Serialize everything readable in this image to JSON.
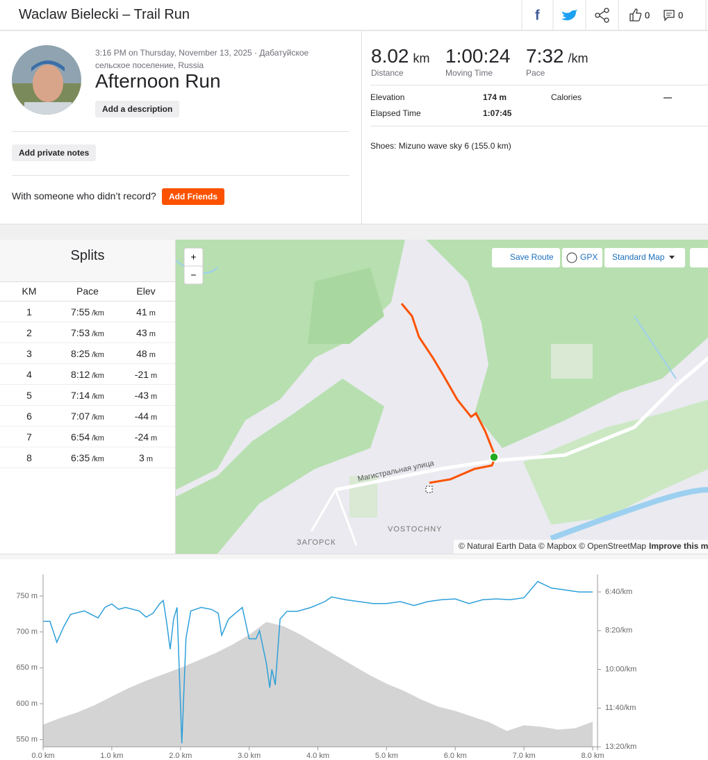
{
  "header": {
    "title": "Waclaw Bielecki – Trail Run",
    "kudos_count": "0",
    "comment_count": "0"
  },
  "activity": {
    "date_location": "3:16 PM on Thursday, November 13, 2025 · Дабатуйское сельское поселение, Russia",
    "name": "Afternoon Run",
    "description_button": "Add a description",
    "private_notes_button": "Add private notes",
    "with_someone": "With someone who didn’t record?",
    "add_friends_button": "Add Friends"
  },
  "stats": {
    "primary": [
      {
        "value": "8.02",
        "unit": "km",
        "label": "Distance"
      },
      {
        "value": "1:00:24",
        "label": "Moving Time"
      },
      {
        "value": "7:32",
        "unit": "/km",
        "label": "Pace"
      }
    ],
    "secondary": [
      {
        "label": "Elevation",
        "value": "174 m"
      },
      {
        "label": "Calories",
        "value": "—"
      },
      {
        "label": "Elapsed Time",
        "value": "1:07:45"
      }
    ],
    "shoes": "Shoes: Mizuno wave sky 6 (155.0 km)"
  },
  "splits": {
    "title": "Splits",
    "columns": [
      "KM",
      "Pace",
      "Elev"
    ],
    "rows": [
      {
        "km": "1",
        "pace": "7:55",
        "pace_unit": "/km",
        "elev": "41",
        "elev_unit": "m"
      },
      {
        "km": "2",
        "pace": "7:53",
        "pace_unit": "/km",
        "elev": "43",
        "elev_unit": "m"
      },
      {
        "km": "3",
        "pace": "8:25",
        "pace_unit": "/km",
        "elev": "48",
        "elev_unit": "m"
      },
      {
        "km": "4",
        "pace": "8:12",
        "pace_unit": "/km",
        "elev": "-21",
        "elev_unit": "m"
      },
      {
        "km": "5",
        "pace": "7:14",
        "pace_unit": "/km",
        "elev": "-43",
        "elev_unit": "m"
      },
      {
        "km": "6",
        "pace": "7:07",
        "pace_unit": "/km",
        "elev": "-44",
        "elev_unit": "m"
      },
      {
        "km": "7",
        "pace": "6:54",
        "pace_unit": "/km",
        "elev": "-24",
        "elev_unit": "m"
      },
      {
        "km": "8",
        "pace": "6:35",
        "pace_unit": "/km",
        "elev": "3",
        "elev_unit": "m"
      }
    ]
  },
  "map": {
    "zoom_in": "+",
    "zoom_out": "−",
    "save_route": "Save Route",
    "gpx": "GPX",
    "map_style": "Standard Map",
    "street": "Магистральная улица",
    "districts": [
      "VOSTOCHNY",
      "ЗАГОРСК"
    ],
    "attribution": "© Natural Earth Data © Mapbox © OpenStreetMap",
    "improve": "Improve this map"
  },
  "chart_data": {
    "type": "line",
    "xlim": [
      0,
      8
    ],
    "xticks": [
      {
        "value": 0,
        "label": "0.0 km"
      },
      {
        "value": 1,
        "label": "1.0 km"
      },
      {
        "value": 2,
        "label": "2.0 km"
      },
      {
        "value": 3,
        "label": "3.0 km"
      },
      {
        "value": 4,
        "label": "4.0 km"
      },
      {
        "value": 5,
        "label": "5.0 km"
      },
      {
        "value": 6,
        "label": "6.0 km"
      },
      {
        "value": 7,
        "label": "7.0 km"
      },
      {
        "value": 8,
        "label": "8.0 km"
      }
    ],
    "ylim": [
      540,
      780
    ],
    "yticks": [
      {
        "value": 550,
        "label": "550 m"
      },
      {
        "value": 600,
        "label": "600 m"
      },
      {
        "value": 650,
        "label": "650 m"
      },
      {
        "value": 700,
        "label": "700 m"
      },
      {
        "value": 750,
        "label": "750 m"
      }
    ],
    "y2lim": [
      800,
      355
    ],
    "y2ticks": [
      {
        "value": 800,
        "label": "13:20/km"
      },
      {
        "value": 700,
        "label": "11:40/km"
      },
      {
        "value": 600,
        "label": "10:00/km"
      },
      {
        "value": 500,
        "label": "8:20/km"
      },
      {
        "value": 400,
        "label": "6:40/km"
      }
    ],
    "series": [
      {
        "kind": "area",
        "color": "#d4d4d4",
        "x": [
          0,
          0.25,
          0.5,
          0.75,
          1,
          1.25,
          1.5,
          1.75,
          2,
          2.25,
          2.5,
          2.75,
          3,
          3.25,
          3.5,
          3.75,
          4,
          4.25,
          4.5,
          4.75,
          5,
          5.25,
          5.5,
          5.75,
          6,
          6.25,
          6.5,
          6.75,
          7,
          7.25,
          7.5,
          7.75,
          8
        ],
        "values": [
          571,
          580,
          588,
          598,
          610,
          622,
          632,
          641,
          650,
          660,
          670,
          682,
          696,
          714,
          708,
          696,
          682,
          668,
          654,
          640,
          628,
          618,
          606,
          596,
          590,
          582,
          574,
          562,
          570,
          568,
          564,
          566,
          575
        ]
      },
      {
        "kind": "line",
        "axis": "y2",
        "color": "#2d9fd9",
        "x": [
          0,
          0.1,
          0.2,
          0.3,
          0.4,
          0.6,
          0.8,
          0.9,
          1,
          1.1,
          1.2,
          1.4,
          1.5,
          1.6,
          1.7,
          1.75,
          1.8,
          1.85,
          1.9,
          1.95,
          2.02,
          2.08,
          2.15,
          2.3,
          2.45,
          2.55,
          2.6,
          2.7,
          2.8,
          2.9,
          3,
          3.1,
          3.15,
          3.25,
          3.3,
          3.33,
          3.38,
          3.45,
          3.55,
          3.7,
          3.9,
          4.1,
          4.2,
          4.4,
          4.6,
          4.8,
          5,
          5.2,
          5.4,
          5.6,
          5.8,
          6,
          6.2,
          6.4,
          6.6,
          6.8,
          7,
          7.2,
          7.4,
          7.6,
          7.8,
          8
        ],
        "values": [
          476,
          476,
          530,
          490,
          458,
          449,
          467,
          440,
          431,
          445,
          440,
          449,
          465,
          455,
          430,
          422,
          480,
          548,
          470,
          440,
          791,
          520,
          449,
          440,
          445,
          455,
          512,
          470,
          455,
          440,
          521,
          521,
          500,
          584,
          647,
          600,
          640,
          470,
          450,
          450,
          440,
          425,
          413,
          420,
          425,
          430,
          430,
          425,
          435,
          425,
          420,
          418,
          430,
          420,
          418,
          420,
          415,
          373,
          390,
          395,
          400,
          400
        ]
      }
    ]
  }
}
